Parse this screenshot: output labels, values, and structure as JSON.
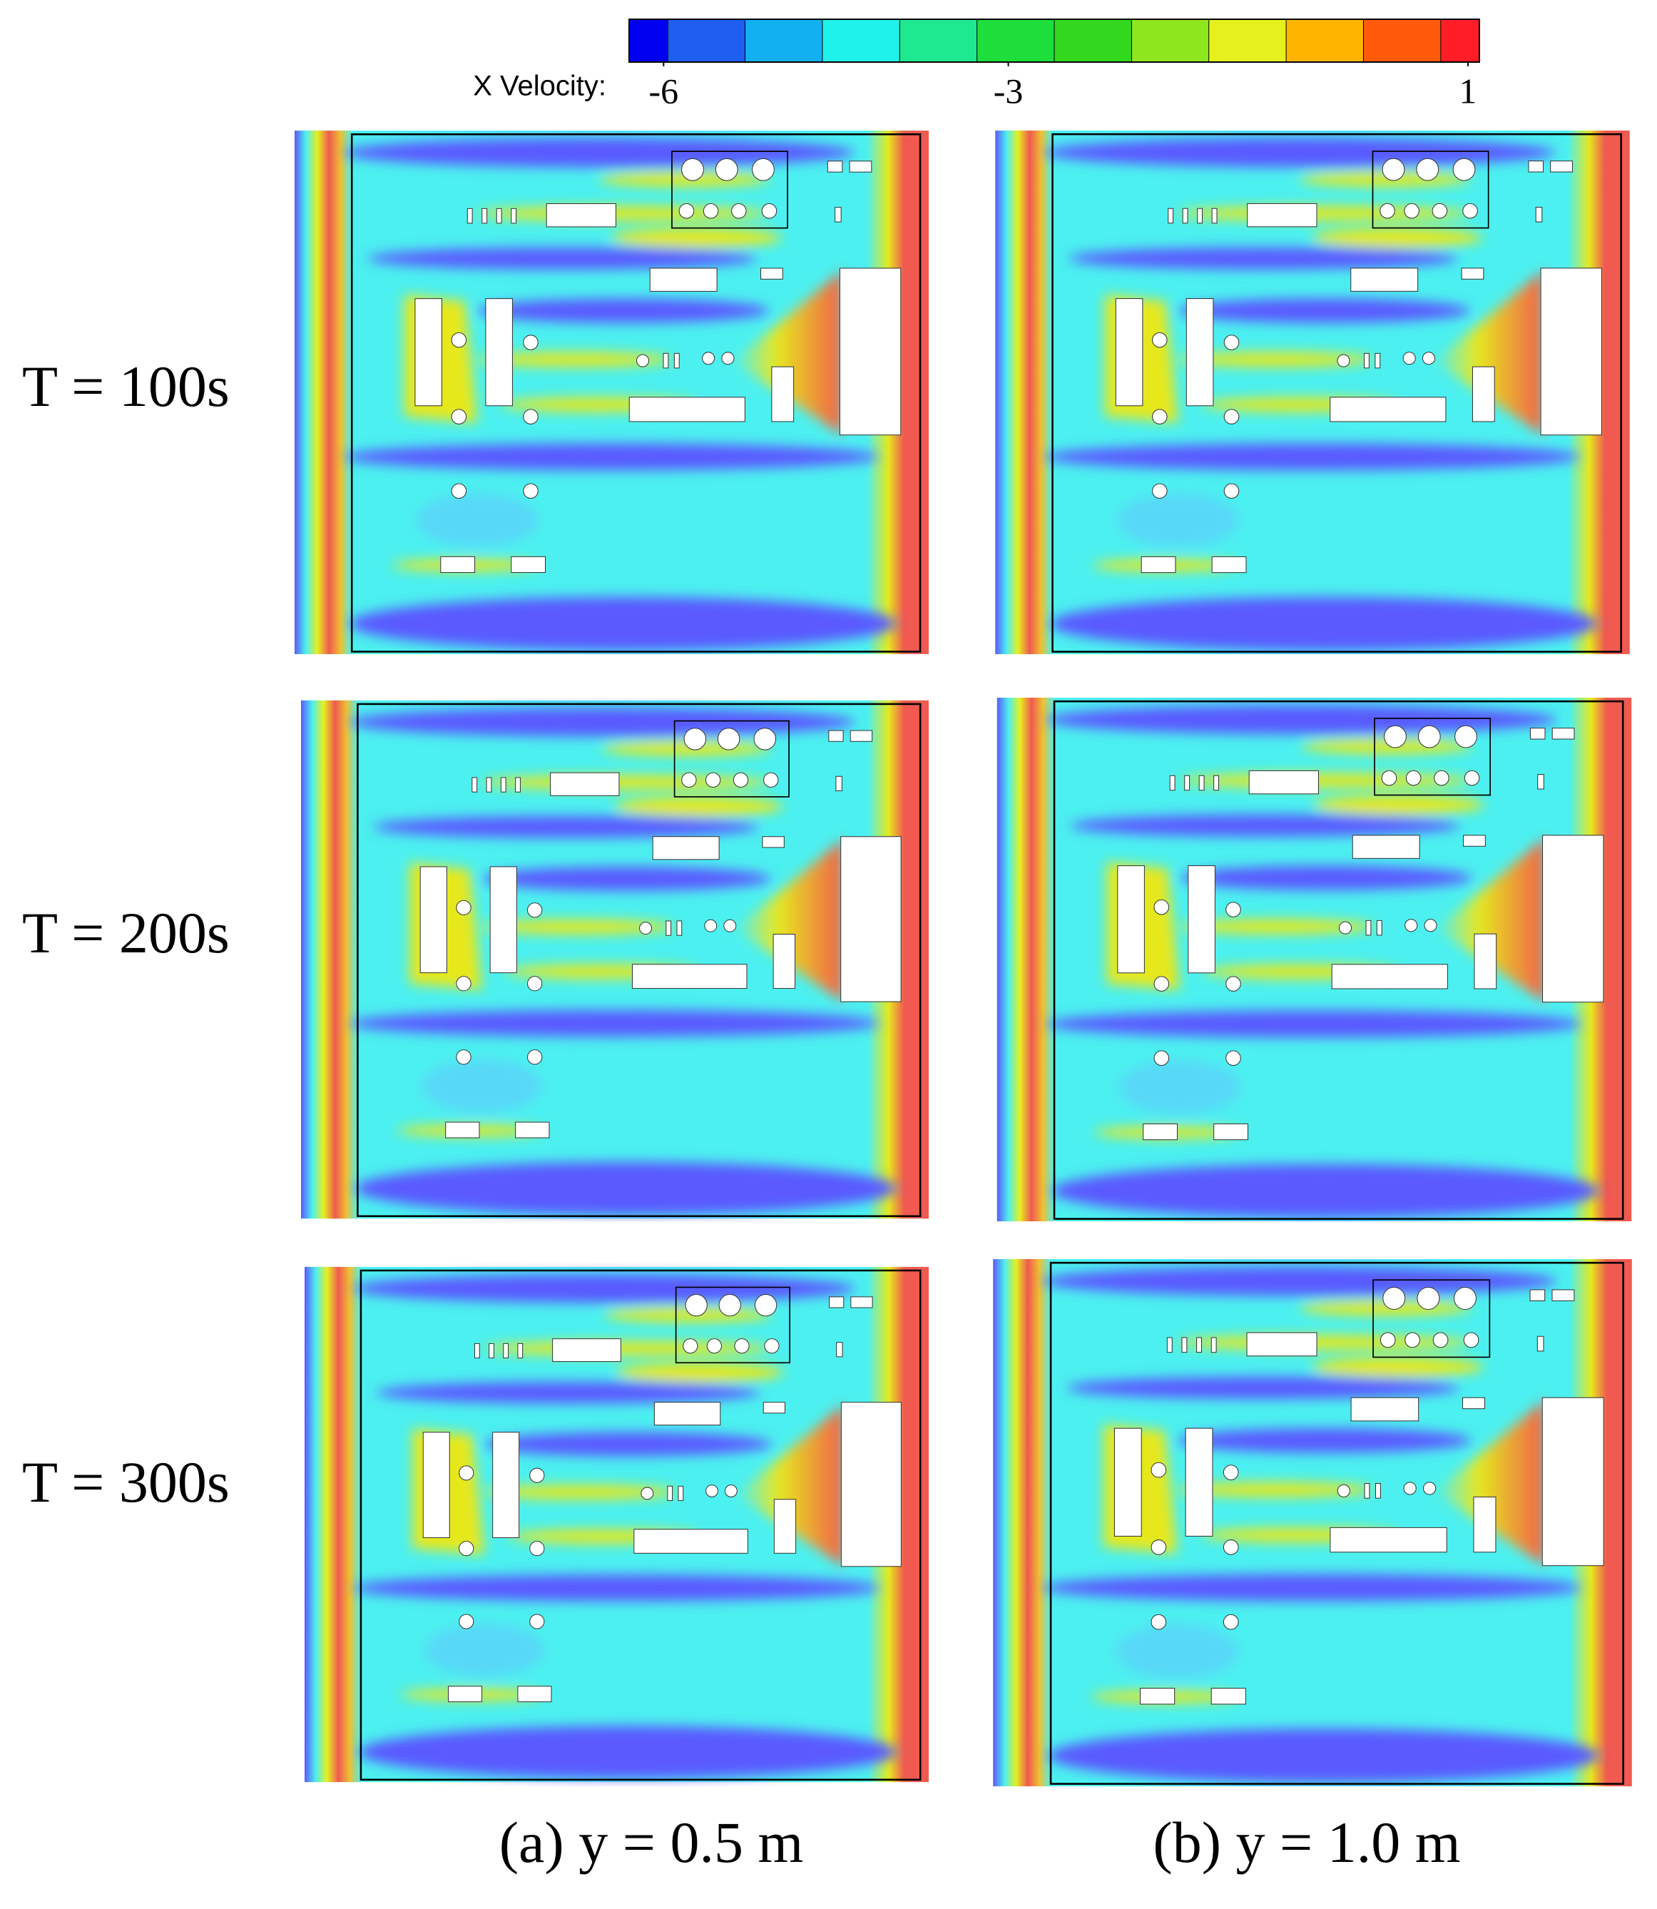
{
  "colorbar": {
    "label": "X Velocity:",
    "clim": [
      -6.3,
      1.1
    ],
    "ticks": [
      -6,
      -3,
      1
    ],
    "colors": [
      "#0000f0",
      "#1e5ef0",
      "#12b0f0",
      "#1ef2ea",
      "#1ee890",
      "#1ede3c",
      "#32d81e",
      "#8ee61e",
      "#e6f01e",
      "#ffb400",
      "#ff5a0a",
      "#ff1e28"
    ]
  },
  "rows": [
    "T = 100s",
    "T = 200s",
    "T = 300s"
  ],
  "columns": [
    "(a) y = 0.5 m",
    "(b) y = 1.0 m"
  ]
}
